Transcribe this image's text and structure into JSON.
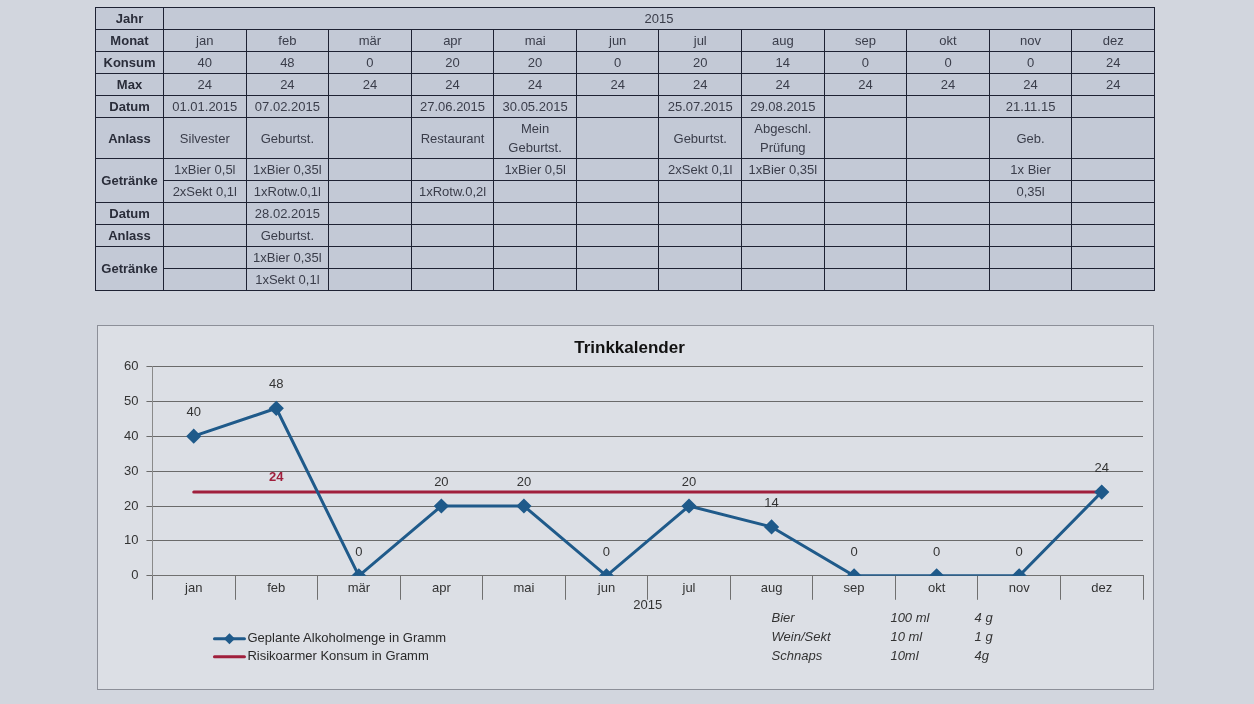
{
  "chart_data": [
    {
      "type": "other",
      "y_categories": [
        "Jahr",
        "Monat",
        "Konsum",
        "Max",
        "Datum",
        "Anlass",
        "Getränke",
        null,
        "Datum",
        "Anlass",
        "Getränke",
        null
      ],
      "cell_labels": [
        [
          "2015"
        ],
        [
          "jan",
          "feb",
          "mär",
          "apr",
          "mai",
          "jun",
          "jul",
          "aug",
          "sep",
          "okt",
          "nov",
          "dez"
        ],
        [
          "40",
          "48",
          "0",
          "20",
          "20",
          "0",
          "20",
          "14",
          "0",
          "0",
          "0",
          "24"
        ],
        [
          "24",
          "24",
          "24",
          "24",
          "24",
          "24",
          "24",
          "24",
          "24",
          "24",
          "24",
          "24"
        ],
        [
          "01.01.2015",
          "07.02.2015",
          null,
          "27.06.2015",
          "30.05.2015",
          null,
          "25.07.2015",
          "29.08.2015",
          null,
          null,
          "21.11.15",
          null
        ],
        [
          "Silvester",
          "Geburtst.",
          null,
          "Restaurant",
          "Mein\nGeburtst.",
          null,
          "Geburtst.",
          "Abgeschl.\nPrüfung",
          null,
          null,
          "Geb.",
          null
        ],
        [
          "1xBier 0,5l",
          "1xBier 0,35l",
          null,
          null,
          "1xBier 0,5l",
          null,
          "2xSekt 0,1l",
          "1xBier 0,35l",
          null,
          null,
          "1x Bier",
          null
        ],
        [
          "2xSekt 0,1l",
          "1xRotw.0,1l",
          null,
          "1xRotw.0,2l",
          null,
          null,
          null,
          null,
          null,
          null,
          "0,35l",
          null
        ],
        [
          null,
          "28.02.2015",
          null,
          null,
          null,
          null,
          null,
          null,
          null,
          null,
          null,
          null
        ],
        [
          null,
          "Geburtst.",
          null,
          null,
          null,
          null,
          null,
          null,
          null,
          null,
          null,
          null
        ],
        [
          null,
          "1xBier 0,35l",
          null,
          null,
          null,
          null,
          null,
          null,
          null,
          null,
          null,
          null
        ],
        [
          null,
          "1xSekt 0,1l",
          null,
          null,
          null,
          null,
          null,
          null,
          null,
          null,
          null,
          null
        ]
      ]
    },
    {
      "type": "line",
      "title": "Trinkkalender",
      "xlabel": "2015",
      "categories": [
        "jan",
        "feb",
        "mär",
        "apr",
        "mai",
        "jun",
        "jul",
        "aug",
        "sep",
        "okt",
        "nov",
        "dez"
      ],
      "series": [
        {
          "name": "Geplante Alkoholmenge in Gramm",
          "color": "#1f5a8a",
          "marker": "diamond",
          "values": [
            40,
            48,
            0,
            20,
            20,
            0,
            20,
            14,
            0,
            0,
            0,
            24
          ],
          "value_labels": [
            "40",
            "48",
            "0",
            "20",
            "20",
            "0",
            "20",
            "14",
            "0",
            "0",
            "0",
            "24"
          ]
        },
        {
          "name": "Risikoarmer Konsum in Gramm",
          "color": "#a01f3c",
          "marker": "none",
          "values": [
            24,
            24,
            24,
            24,
            24,
            24,
            24,
            24,
            24,
            24,
            24,
            24
          ],
          "value_labels": [
            null,
            "24",
            null,
            null,
            null,
            null,
            null,
            null,
            null,
            null,
            null,
            null
          ]
        }
      ],
      "ylim": [
        0,
        60
      ],
      "yticks": [
        0,
        10,
        20,
        30,
        40,
        50,
        60
      ],
      "grid": "y",
      "legend": "bottom left",
      "annotations": [
        "Bier",
        "100 ml",
        "4 g",
        "Wein/Sekt",
        "10 ml",
        "1 g",
        "Schnaps",
        "10ml",
        "4g"
      ]
    }
  ]
}
